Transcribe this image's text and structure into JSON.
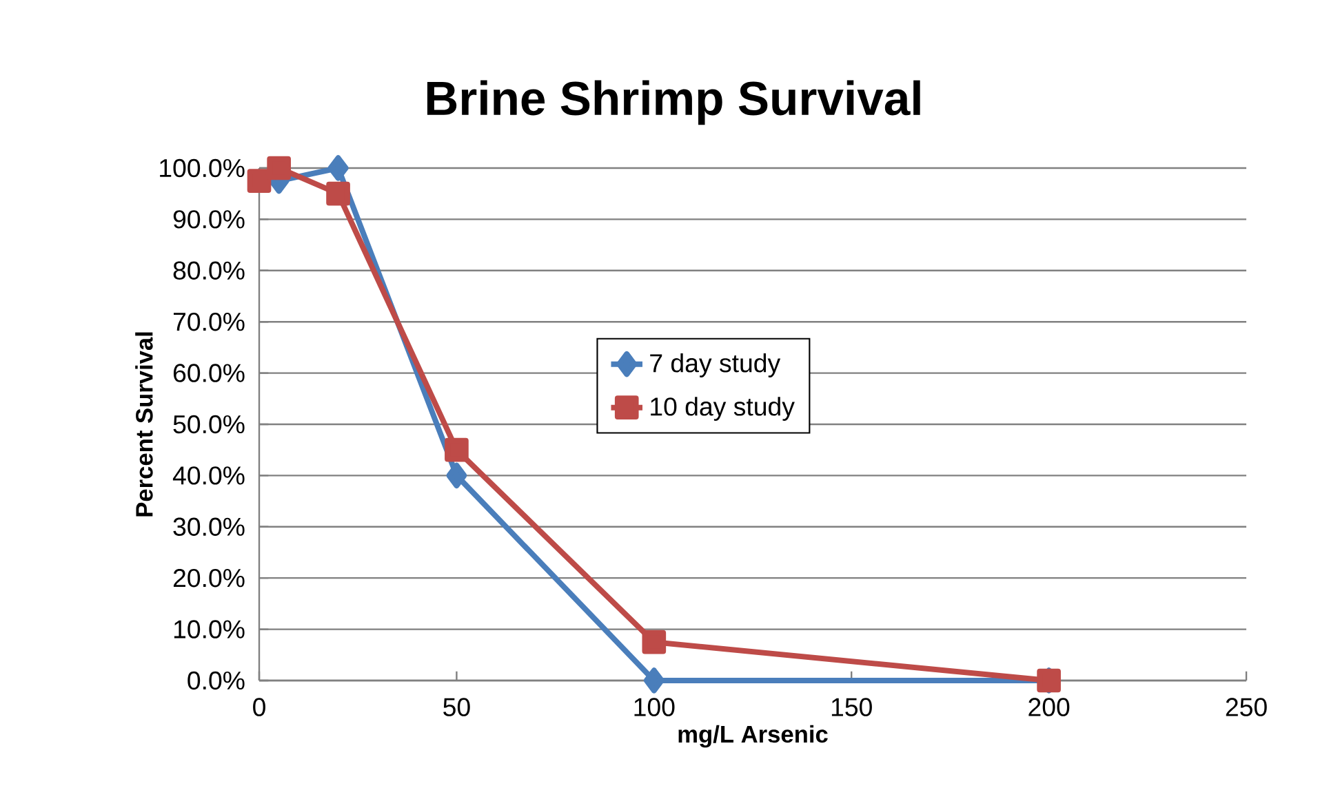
{
  "chart_data": {
    "type": "line",
    "title": "Brine Shrimp Survival",
    "xlabel": "mg/L Arsenic",
    "ylabel": "Percent Survival",
    "series": [
      {
        "name": "7 day study",
        "color": "#4a7ebb",
        "marker": "diamond",
        "x": [
          5,
          20,
          50,
          100,
          200
        ],
        "values": [
          97.5,
          100,
          40,
          0,
          0
        ]
      },
      {
        "name": "10 day study",
        "color": "#be4b48",
        "marker": "square",
        "x": [
          0,
          5,
          20,
          50,
          100,
          200
        ],
        "values": [
          97.5,
          100,
          95,
          45,
          7.5,
          0
        ]
      }
    ],
    "xlim": [
      0,
      250
    ],
    "xticks": [
      0,
      50,
      100,
      150,
      200,
      250
    ],
    "ylim": [
      0,
      100
    ],
    "yticks": [
      {
        "value": 0,
        "label": "0.0%"
      },
      {
        "value": 10,
        "label": "10.0%"
      },
      {
        "value": 20,
        "label": "20.0%"
      },
      {
        "value": 30,
        "label": "30.0%"
      },
      {
        "value": 40,
        "label": "40.0%"
      },
      {
        "value": 50,
        "label": "50.0%"
      },
      {
        "value": 60,
        "label": "60.0%"
      },
      {
        "value": 70,
        "label": "70.0%"
      },
      {
        "value": 80,
        "label": "80.0%"
      },
      {
        "value": 90,
        "label": "90.0%"
      },
      {
        "value": 100,
        "label": "100.0%"
      }
    ],
    "grid": "y",
    "legend": "center"
  }
}
